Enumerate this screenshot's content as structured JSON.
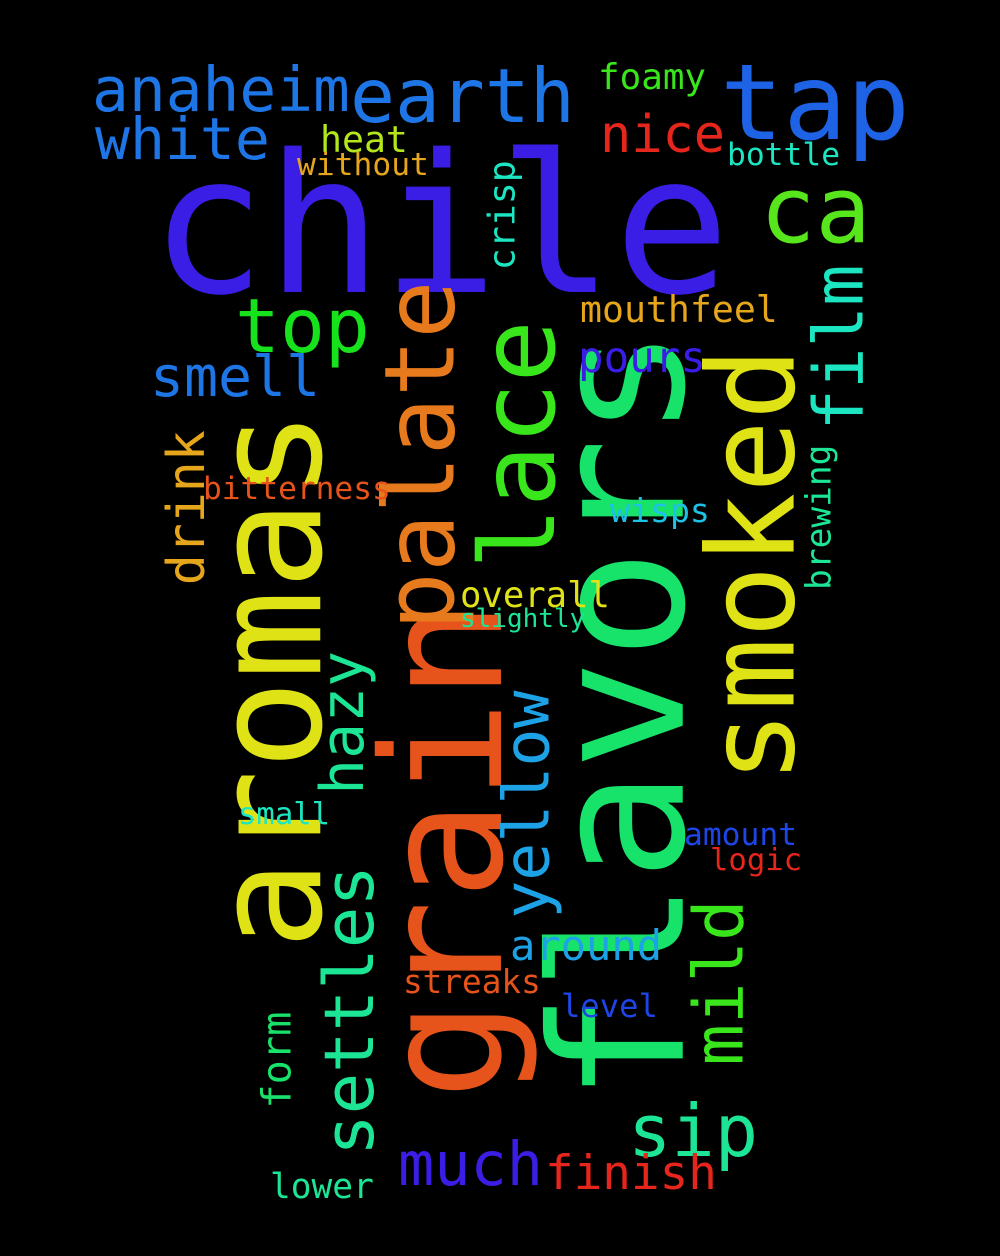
{
  "words": [
    {
      "text": "chile",
      "color": "#3a1ee6"
    },
    {
      "text": "flavors",
      "color": "#17e36a"
    },
    {
      "text": "aromas",
      "color": "#dfe316"
    },
    {
      "text": "grain",
      "color": "#e6541c"
    },
    {
      "text": "smoked",
      "color": "#dfe316"
    },
    {
      "text": "palate",
      "color": "#e67a1c"
    },
    {
      "text": "lace",
      "color": "#39e61c"
    },
    {
      "text": "tap",
      "color": "#1e62e6"
    },
    {
      "text": "earth",
      "color": "#1e76e6"
    },
    {
      "text": "anaheim",
      "color": "#1e76e6"
    },
    {
      "text": "white",
      "color": "#1e76e6"
    },
    {
      "text": "ca",
      "color": "#57e61c"
    },
    {
      "text": "nice",
      "color": "#e6261c"
    },
    {
      "text": "top",
      "color": "#17e31c"
    },
    {
      "text": "yellow",
      "color": "#1ea2e6"
    },
    {
      "text": "settles",
      "color": "#1ce696"
    },
    {
      "text": "smell",
      "color": "#1e76e6"
    },
    {
      "text": "film",
      "color": "#1ce6c2"
    },
    {
      "text": "hazy",
      "color": "#1ce696"
    },
    {
      "text": "mild",
      "color": "#39e61c"
    },
    {
      "text": "sip",
      "color": "#1ce696"
    },
    {
      "text": "much",
      "color": "#3a1ee6"
    },
    {
      "text": "finish",
      "color": "#e6261c"
    },
    {
      "text": "drink",
      "color": "#e6a61c"
    },
    {
      "text": "around",
      "color": "#1ea2e6"
    },
    {
      "text": "pours",
      "color": "#3a1ee6"
    },
    {
      "text": "mouthfeel",
      "color": "#e6a61c"
    },
    {
      "text": "foamy",
      "color": "#39e61c"
    },
    {
      "text": "heat",
      "color": "#b4e61c"
    },
    {
      "text": "without",
      "color": "#e6a61c"
    },
    {
      "text": "bottle",
      "color": "#1ce6c2"
    },
    {
      "text": "crisp",
      "color": "#1ce6c2"
    },
    {
      "text": "overall",
      "color": "#dfe316"
    },
    {
      "text": "slightly",
      "color": "#1ce696"
    },
    {
      "text": "bitterness",
      "color": "#e6541c"
    },
    {
      "text": "wisps",
      "color": "#1ec2e6"
    },
    {
      "text": "brewing",
      "color": "#1ce696"
    },
    {
      "text": "small",
      "color": "#1ce6c2"
    },
    {
      "text": "amount",
      "color": "#1e46e6"
    },
    {
      "text": "logic",
      "color": "#e6261c"
    },
    {
      "text": "streaks",
      "color": "#e6541c"
    },
    {
      "text": "level",
      "color": "#1e46e6"
    },
    {
      "text": "form",
      "color": "#17e36a"
    },
    {
      "text": "lower",
      "color": "#1ce696"
    }
  ]
}
